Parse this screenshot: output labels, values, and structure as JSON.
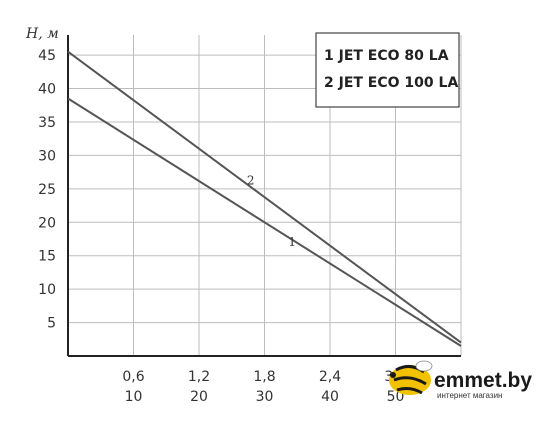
{
  "chart_data": {
    "type": "line",
    "ylabel": "H, м",
    "y_ticks": [
      "5",
      "10",
      "15",
      "20",
      "25",
      "30",
      "35",
      "40",
      "45"
    ],
    "x_ticks": [
      "0,6",
      "1,2",
      "1,8",
      "2,4",
      "3,0"
    ],
    "x2_ticks": [
      "10",
      "20",
      "30",
      "40",
      "50"
    ],
    "xlim": [
      0,
      3.6
    ],
    "ylim": [
      0,
      48
    ],
    "grid": true,
    "series": [
      {
        "name": "JET ECO 80 LA",
        "label": "1",
        "x": [
          0,
          3.6
        ],
        "y": [
          38.5,
          1.5
        ],
        "color": "#555555"
      },
      {
        "name": "JET ECO 100 LA",
        "label": "2",
        "x": [
          0,
          3.6
        ],
        "y": [
          45.5,
          2.0
        ],
        "color": "#555555"
      }
    ],
    "legend": {
      "position": "top-right",
      "entries": [
        "1 JET ECO 80 LA",
        "2 JET ECO 100 LA"
      ]
    }
  },
  "watermark": {
    "brand": "emmet.by",
    "tagline": "интернет магазин",
    "accent": "#f2c200"
  }
}
